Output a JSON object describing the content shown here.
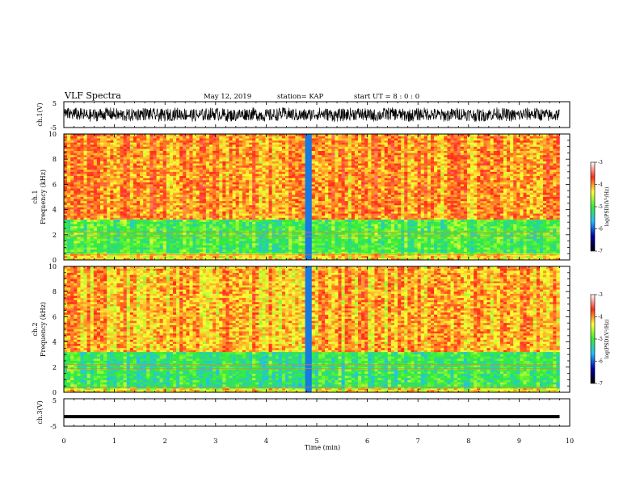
{
  "header": {
    "title": "VLF Spectra",
    "date": "May 12, 2019",
    "station": "station= KAP",
    "start_ut": "start  UT =  8 : 0 : 0"
  },
  "panels": {
    "ch1_wave": {
      "ylabel": "ch.1(V)",
      "yticks": [
        "5",
        "-5"
      ]
    },
    "ch1_spec": {
      "ylabel_line1": "ch.1",
      "ylabel_line2": "Frequency (kHz)"
    },
    "ch2_spec": {
      "ylabel_line1": "ch.2",
      "ylabel_line2": "Frequency (kHz)"
    },
    "ch3_wave": {
      "ylabel": "ch.3(V)",
      "yticks": [
        "5",
        "-5"
      ]
    }
  },
  "colorbar": {
    "label": "log(PSD)(V²/Hz)",
    "ticks": [
      "-3",
      "-4",
      "-5",
      "-6",
      "-7"
    ],
    "stops": [
      "#ffffff",
      "#ff2a1a",
      "#ffff33",
      "#33ee33",
      "#22bbff",
      "#0000aa",
      "#000000"
    ]
  },
  "chart_data": [
    {
      "type": "line",
      "name": "ch.1 waveform",
      "xlabel": "Time (min)",
      "ylabel": "ch.1(V)",
      "xlim": [
        0,
        10
      ],
      "ylim": [
        -5,
        5
      ],
      "data_extent_min": 9.8,
      "amplitude_range": [
        -2.5,
        2.5
      ]
    },
    {
      "type": "heatmap",
      "name": "ch.1 spectrogram",
      "xlabel": "Time (min)",
      "ylabel": "Frequency (kHz)",
      "xlim": [
        0,
        10
      ],
      "ylim": [
        0,
        10
      ],
      "yticks": [
        0,
        2,
        4,
        6,
        8,
        10
      ],
      "zlabel": "log(PSD)(V²/Hz)",
      "zlim": [
        -7,
        -3
      ],
      "bands": [
        {
          "freq_khz": [
            3.2,
            10
          ],
          "log_psd": -4.0
        },
        {
          "freq_khz": [
            0.5,
            3.2
          ],
          "log_psd": -5.0
        },
        {
          "freq_khz": [
            0,
            0.5
          ],
          "log_psd": -4.3
        }
      ],
      "notable_event_min": 4.77
    },
    {
      "type": "heatmap",
      "name": "ch.2 spectrogram",
      "xlabel": "Time (min)",
      "ylabel": "Frequency (kHz)",
      "xlim": [
        0,
        10
      ],
      "ylim": [
        0,
        10
      ],
      "yticks": [
        0,
        2,
        4,
        6,
        8,
        10
      ],
      "zlabel": "log(PSD)(V²/Hz)",
      "zlim": [
        -7,
        -3
      ],
      "bands": [
        {
          "freq_khz": [
            3.2,
            10
          ],
          "log_psd": -4.1
        },
        {
          "freq_khz": [
            0.3,
            3.2
          ],
          "log_psd": -5.1
        },
        {
          "freq_khz": [
            0,
            0.3
          ],
          "log_psd": -4.3
        }
      ],
      "notable_event_min": 4.77
    },
    {
      "type": "line",
      "name": "ch.3 waveform",
      "xlabel": "Time (min)",
      "ylabel": "ch.3(V)",
      "xlim": [
        0,
        10
      ],
      "ylim": [
        -5,
        5
      ],
      "data_extent_min": 9.8,
      "constant_value": -1.5
    }
  ],
  "x_axis": {
    "label": "Time (min)",
    "ticks": [
      "0",
      "1",
      "2",
      "3",
      "4",
      "5",
      "6",
      "7",
      "8",
      "9",
      "10"
    ]
  }
}
